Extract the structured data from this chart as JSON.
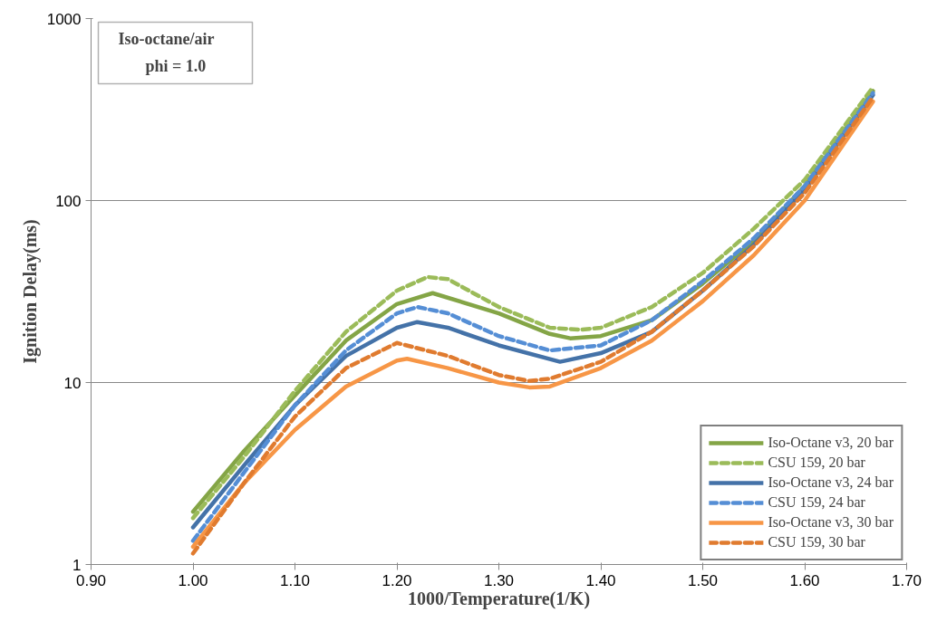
{
  "chart_data": {
    "type": "line",
    "xlabel": "1000/Temperature(1/K)",
    "ylabel": "Ignition Delay(ms)",
    "annotations": [
      "Iso-octane/air",
      "phi = 1.0"
    ],
    "log": "y",
    "grid": "y",
    "legend": "bottom right",
    "marker": "none",
    "xlim": [
      0.9,
      1.7
    ],
    "xticks": [
      {
        "value": 0.9,
        "label": "0.90"
      },
      {
        "value": 1.0,
        "label": "1.00"
      },
      {
        "value": 1.1,
        "label": "1.10"
      },
      {
        "value": 1.2,
        "label": "1.20"
      },
      {
        "value": 1.3,
        "label": "1.30"
      },
      {
        "value": 1.4,
        "label": "1.40"
      },
      {
        "value": 1.5,
        "label": "1.50"
      },
      {
        "value": 1.6,
        "label": "1.60"
      },
      {
        "value": 1.7,
        "label": "1.70"
      }
    ],
    "ylim": [
      1,
      1000
    ],
    "yticks": [
      1,
      10,
      100,
      1000
    ],
    "series": [
      {
        "name": "Iso-Octane v3, 20 bar",
        "color": "#84a546",
        "line_style": "solid",
        "x": [
          1.0,
          1.05,
          1.1,
          1.15,
          1.2,
          1.235,
          1.3,
          1.35,
          1.37,
          1.4,
          1.45,
          1.5,
          1.55,
          1.6,
          1.667
        ],
        "values": [
          1.95,
          4.2,
          8.5,
          17,
          27,
          31,
          24,
          18.5,
          17.5,
          18,
          22,
          35,
          60,
          120,
          400
        ]
      },
      {
        "name": "CSU 159, 20 bar",
        "color": "#9bbb59",
        "line_style": "dashed",
        "x": [
          1.0,
          1.05,
          1.1,
          1.15,
          1.2,
          1.23,
          1.25,
          1.3,
          1.35,
          1.38,
          1.4,
          1.45,
          1.5,
          1.55,
          1.6,
          1.667
        ],
        "values": [
          1.8,
          3.9,
          9,
          19,
          32,
          38,
          37,
          26,
          20,
          19.5,
          20,
          26,
          40,
          70,
          130,
          420
        ]
      },
      {
        "name": "Iso-Octane v3, 24 bar",
        "color": "#4472a8",
        "line_style": "solid",
        "x": [
          1.0,
          1.05,
          1.1,
          1.15,
          1.2,
          1.22,
          1.25,
          1.3,
          1.36,
          1.4,
          1.45,
          1.5,
          1.55,
          1.6,
          1.667
        ],
        "values": [
          1.6,
          3.5,
          7.5,
          14,
          20,
          21.5,
          20,
          16,
          13,
          14.5,
          19,
          32,
          57,
          115,
          380
        ]
      },
      {
        "name": "CSU 159, 24 bar",
        "color": "#558ed5",
        "line_style": "dashed",
        "x": [
          1.0,
          1.05,
          1.1,
          1.15,
          1.2,
          1.22,
          1.25,
          1.3,
          1.35,
          1.4,
          1.45,
          1.5,
          1.55,
          1.6,
          1.667
        ],
        "values": [
          1.35,
          3.2,
          7.5,
          15,
          24,
          26,
          24,
          18,
          15,
          16,
          22,
          36,
          62,
          120,
          390
        ]
      },
      {
        "name": "Iso-Octane v3, 30 bar",
        "color": "#f79646",
        "line_style": "solid",
        "x": [
          1.0,
          1.05,
          1.1,
          1.15,
          1.2,
          1.21,
          1.25,
          1.3,
          1.33,
          1.35,
          1.4,
          1.45,
          1.5,
          1.55,
          1.6,
          1.667
        ],
        "values": [
          1.25,
          2.8,
          5.5,
          9.5,
          13.2,
          13.5,
          12,
          10,
          9.4,
          9.5,
          12,
          17,
          28,
          50,
          100,
          350
        ]
      },
      {
        "name": "CSU 159, 30 bar",
        "color": "#e07b2f",
        "line_style": "dashed",
        "x": [
          1.0,
          1.05,
          1.1,
          1.15,
          1.2,
          1.25,
          1.3,
          1.33,
          1.35,
          1.4,
          1.45,
          1.5,
          1.55,
          1.6,
          1.667
        ],
        "values": [
          1.15,
          2.8,
          6.5,
          12,
          16.5,
          14,
          11,
          10.2,
          10.5,
          13,
          19,
          32,
          56,
          110,
          370
        ]
      }
    ]
  }
}
